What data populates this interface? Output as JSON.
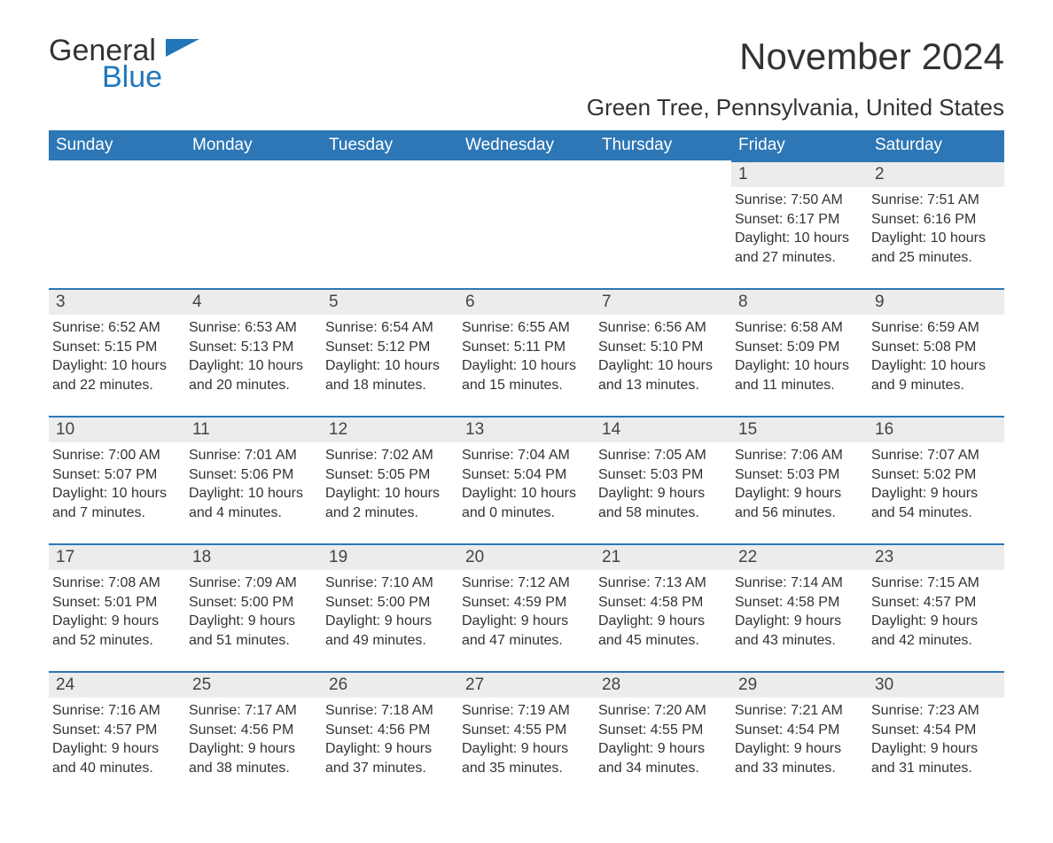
{
  "logo": {
    "word1": "General",
    "word2": "Blue"
  },
  "title": "November 2024",
  "location": "Green Tree, Pennsylvania, United States",
  "colors": {
    "header_bg": "#2d77b6",
    "header_text": "#ffffff",
    "daynum_bg": "#ececec",
    "border": "#2d77b6",
    "text": "#333333",
    "logo_blue": "#2277bb"
  },
  "typography": {
    "title_fontsize": 42,
    "location_fontsize": 26,
    "daynum_fontsize": 19,
    "body_fontsize": 16,
    "header_fontsize": 19
  },
  "weekdays": [
    "Sunday",
    "Monday",
    "Tuesday",
    "Wednesday",
    "Thursday",
    "Friday",
    "Saturday"
  ],
  "weeks": [
    [
      null,
      null,
      null,
      null,
      null,
      {
        "n": "1",
        "sunrise": "7:50 AM",
        "sunset": "6:17 PM",
        "dl1": "Daylight: 10 hours",
        "dl2": "and 27 minutes."
      },
      {
        "n": "2",
        "sunrise": "7:51 AM",
        "sunset": "6:16 PM",
        "dl1": "Daylight: 10 hours",
        "dl2": "and 25 minutes."
      }
    ],
    [
      {
        "n": "3",
        "sunrise": "6:52 AM",
        "sunset": "5:15 PM",
        "dl1": "Daylight: 10 hours",
        "dl2": "and 22 minutes."
      },
      {
        "n": "4",
        "sunrise": "6:53 AM",
        "sunset": "5:13 PM",
        "dl1": "Daylight: 10 hours",
        "dl2": "and 20 minutes."
      },
      {
        "n": "5",
        "sunrise": "6:54 AM",
        "sunset": "5:12 PM",
        "dl1": "Daylight: 10 hours",
        "dl2": "and 18 minutes."
      },
      {
        "n": "6",
        "sunrise": "6:55 AM",
        "sunset": "5:11 PM",
        "dl1": "Daylight: 10 hours",
        "dl2": "and 15 minutes."
      },
      {
        "n": "7",
        "sunrise": "6:56 AM",
        "sunset": "5:10 PM",
        "dl1": "Daylight: 10 hours",
        "dl2": "and 13 minutes."
      },
      {
        "n": "8",
        "sunrise": "6:58 AM",
        "sunset": "5:09 PM",
        "dl1": "Daylight: 10 hours",
        "dl2": "and 11 minutes."
      },
      {
        "n": "9",
        "sunrise": "6:59 AM",
        "sunset": "5:08 PM",
        "dl1": "Daylight: 10 hours",
        "dl2": "and 9 minutes."
      }
    ],
    [
      {
        "n": "10",
        "sunrise": "7:00 AM",
        "sunset": "5:07 PM",
        "dl1": "Daylight: 10 hours",
        "dl2": "and 7 minutes."
      },
      {
        "n": "11",
        "sunrise": "7:01 AM",
        "sunset": "5:06 PM",
        "dl1": "Daylight: 10 hours",
        "dl2": "and 4 minutes."
      },
      {
        "n": "12",
        "sunrise": "7:02 AM",
        "sunset": "5:05 PM",
        "dl1": "Daylight: 10 hours",
        "dl2": "and 2 minutes."
      },
      {
        "n": "13",
        "sunrise": "7:04 AM",
        "sunset": "5:04 PM",
        "dl1": "Daylight: 10 hours",
        "dl2": "and 0 minutes."
      },
      {
        "n": "14",
        "sunrise": "7:05 AM",
        "sunset": "5:03 PM",
        "dl1": "Daylight: 9 hours",
        "dl2": "and 58 minutes."
      },
      {
        "n": "15",
        "sunrise": "7:06 AM",
        "sunset": "5:03 PM",
        "dl1": "Daylight: 9 hours",
        "dl2": "and 56 minutes."
      },
      {
        "n": "16",
        "sunrise": "7:07 AM",
        "sunset": "5:02 PM",
        "dl1": "Daylight: 9 hours",
        "dl2": "and 54 minutes."
      }
    ],
    [
      {
        "n": "17",
        "sunrise": "7:08 AM",
        "sunset": "5:01 PM",
        "dl1": "Daylight: 9 hours",
        "dl2": "and 52 minutes."
      },
      {
        "n": "18",
        "sunrise": "7:09 AM",
        "sunset": "5:00 PM",
        "dl1": "Daylight: 9 hours",
        "dl2": "and 51 minutes."
      },
      {
        "n": "19",
        "sunrise": "7:10 AM",
        "sunset": "5:00 PM",
        "dl1": "Daylight: 9 hours",
        "dl2": "and 49 minutes."
      },
      {
        "n": "20",
        "sunrise": "7:12 AM",
        "sunset": "4:59 PM",
        "dl1": "Daylight: 9 hours",
        "dl2": "and 47 minutes."
      },
      {
        "n": "21",
        "sunrise": "7:13 AM",
        "sunset": "4:58 PM",
        "dl1": "Daylight: 9 hours",
        "dl2": "and 45 minutes."
      },
      {
        "n": "22",
        "sunrise": "7:14 AM",
        "sunset": "4:58 PM",
        "dl1": "Daylight: 9 hours",
        "dl2": "and 43 minutes."
      },
      {
        "n": "23",
        "sunrise": "7:15 AM",
        "sunset": "4:57 PM",
        "dl1": "Daylight: 9 hours",
        "dl2": "and 42 minutes."
      }
    ],
    [
      {
        "n": "24",
        "sunrise": "7:16 AM",
        "sunset": "4:57 PM",
        "dl1": "Daylight: 9 hours",
        "dl2": "and 40 minutes."
      },
      {
        "n": "25",
        "sunrise": "7:17 AM",
        "sunset": "4:56 PM",
        "dl1": "Daylight: 9 hours",
        "dl2": "and 38 minutes."
      },
      {
        "n": "26",
        "sunrise": "7:18 AM",
        "sunset": "4:56 PM",
        "dl1": "Daylight: 9 hours",
        "dl2": "and 37 minutes."
      },
      {
        "n": "27",
        "sunrise": "7:19 AM",
        "sunset": "4:55 PM",
        "dl1": "Daylight: 9 hours",
        "dl2": "and 35 minutes."
      },
      {
        "n": "28",
        "sunrise": "7:20 AM",
        "sunset": "4:55 PM",
        "dl1": "Daylight: 9 hours",
        "dl2": "and 34 minutes."
      },
      {
        "n": "29",
        "sunrise": "7:21 AM",
        "sunset": "4:54 PM",
        "dl1": "Daylight: 9 hours",
        "dl2": "and 33 minutes."
      },
      {
        "n": "30",
        "sunrise": "7:23 AM",
        "sunset": "4:54 PM",
        "dl1": "Daylight: 9 hours",
        "dl2": "and 31 minutes."
      }
    ]
  ],
  "labels": {
    "sunrise_prefix": "Sunrise: ",
    "sunset_prefix": "Sunset: "
  }
}
